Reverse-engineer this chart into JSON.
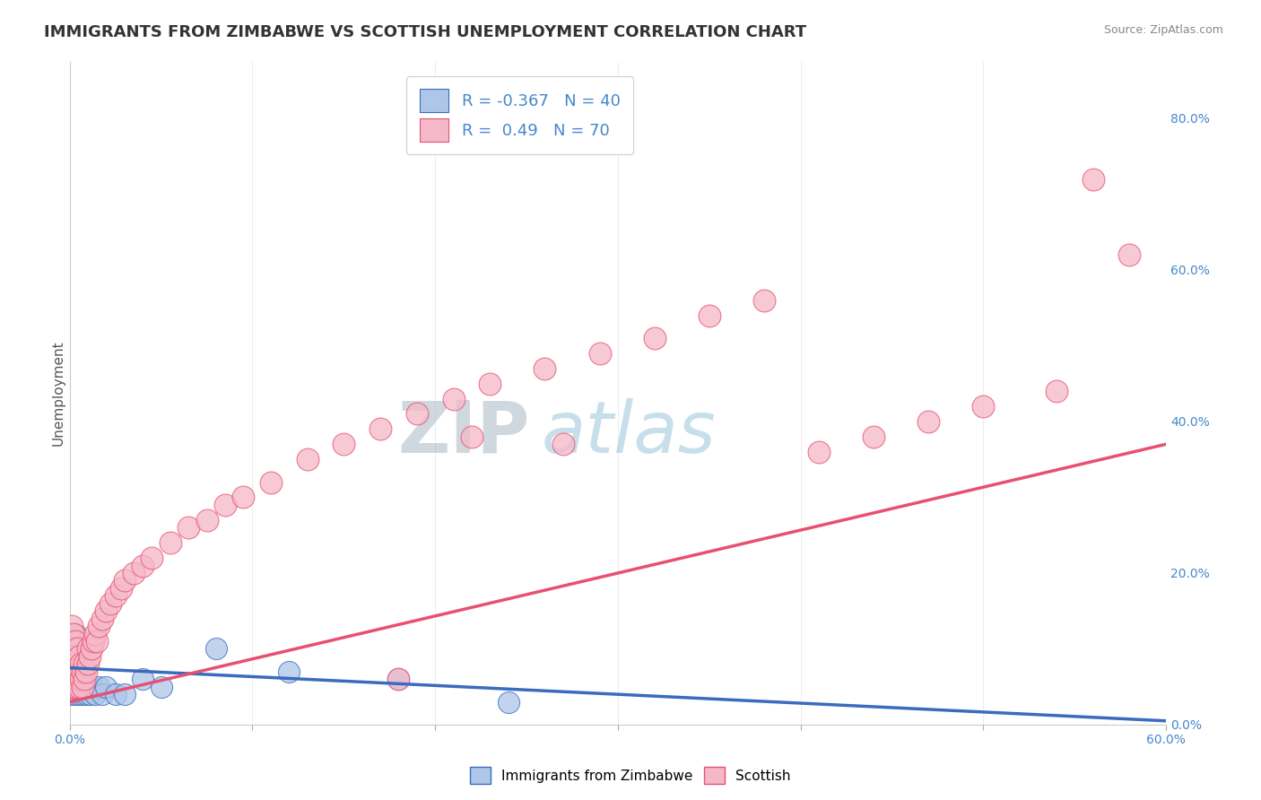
{
  "title": "IMMIGRANTS FROM ZIMBABWE VS SCOTTISH UNEMPLOYMENT CORRELATION CHART",
  "source": "Source: ZipAtlas.com",
  "ylabel": "Unemployment",
  "xlim": [
    0.0,
    0.6
  ],
  "ylim": [
    0.0,
    0.875
  ],
  "xticks": [
    0.0,
    0.1,
    0.2,
    0.3,
    0.4,
    0.5,
    0.6
  ],
  "xtick_labels_show": [
    "0.0%",
    "",
    "",
    "",
    "",
    "",
    "60.0%"
  ],
  "yticks_right": [
    0.0,
    0.2,
    0.4,
    0.6,
    0.8
  ],
  "ytick_labels_right": [
    "0.0%",
    "20.0%",
    "40.0%",
    "60.0%",
    "80.0%"
  ],
  "blue_scatter_x": [
    0.001,
    0.001,
    0.001,
    0.001,
    0.002,
    0.002,
    0.002,
    0.002,
    0.003,
    0.003,
    0.003,
    0.003,
    0.003,
    0.004,
    0.004,
    0.004,
    0.005,
    0.005,
    0.005,
    0.006,
    0.006,
    0.007,
    0.007,
    0.008,
    0.009,
    0.01,
    0.011,
    0.012,
    0.014,
    0.016,
    0.018,
    0.02,
    0.025,
    0.03,
    0.04,
    0.05,
    0.08,
    0.12,
    0.18,
    0.24
  ],
  "blue_scatter_y": [
    0.04,
    0.06,
    0.08,
    0.1,
    0.05,
    0.07,
    0.09,
    0.11,
    0.04,
    0.06,
    0.08,
    0.1,
    0.12,
    0.05,
    0.07,
    0.09,
    0.04,
    0.06,
    0.08,
    0.05,
    0.07,
    0.04,
    0.06,
    0.05,
    0.04,
    0.05,
    0.04,
    0.05,
    0.04,
    0.05,
    0.04,
    0.05,
    0.04,
    0.04,
    0.06,
    0.05,
    0.1,
    0.07,
    0.06,
    0.03
  ],
  "pink_scatter_x": [
    0.001,
    0.001,
    0.001,
    0.001,
    0.001,
    0.002,
    0.002,
    0.002,
    0.002,
    0.003,
    0.003,
    0.003,
    0.003,
    0.004,
    0.004,
    0.004,
    0.005,
    0.005,
    0.005,
    0.006,
    0.006,
    0.007,
    0.007,
    0.008,
    0.008,
    0.009,
    0.01,
    0.01,
    0.011,
    0.012,
    0.013,
    0.014,
    0.015,
    0.016,
    0.018,
    0.02,
    0.022,
    0.025,
    0.028,
    0.03,
    0.035,
    0.04,
    0.045,
    0.055,
    0.065,
    0.075,
    0.085,
    0.095,
    0.11,
    0.13,
    0.15,
    0.17,
    0.19,
    0.21,
    0.23,
    0.26,
    0.29,
    0.32,
    0.35,
    0.38,
    0.41,
    0.44,
    0.47,
    0.5,
    0.54,
    0.56,
    0.58,
    0.22,
    0.27,
    0.18
  ],
  "pink_scatter_y": [
    0.05,
    0.07,
    0.09,
    0.11,
    0.13,
    0.06,
    0.08,
    0.1,
    0.12,
    0.05,
    0.07,
    0.09,
    0.11,
    0.06,
    0.08,
    0.1,
    0.05,
    0.07,
    0.09,
    0.06,
    0.08,
    0.05,
    0.07,
    0.06,
    0.08,
    0.07,
    0.08,
    0.1,
    0.09,
    0.1,
    0.11,
    0.12,
    0.11,
    0.13,
    0.14,
    0.15,
    0.16,
    0.17,
    0.18,
    0.19,
    0.2,
    0.21,
    0.22,
    0.24,
    0.26,
    0.27,
    0.29,
    0.3,
    0.32,
    0.35,
    0.37,
    0.39,
    0.41,
    0.43,
    0.45,
    0.47,
    0.49,
    0.51,
    0.54,
    0.56,
    0.36,
    0.38,
    0.4,
    0.42,
    0.44,
    0.72,
    0.62,
    0.38,
    0.37,
    0.06
  ],
  "blue_color": "#aec6e8",
  "pink_color": "#f5b8c8",
  "blue_line_color": "#3a6bbf",
  "pink_line_color": "#e85070",
  "blue_trend_x": [
    0.0,
    0.6
  ],
  "blue_trend_y": [
    0.075,
    0.005
  ],
  "pink_trend_x": [
    0.0,
    0.6
  ],
  "pink_trend_y": [
    0.03,
    0.37
  ],
  "blue_R": -0.367,
  "blue_N": 40,
  "pink_R": 0.49,
  "pink_N": 70,
  "watermark_zip": "ZIP",
  "watermark_atlas": "atlas",
  "title_fontsize": 13,
  "label_fontsize": 11,
  "tick_fontsize": 10,
  "background_color": "#ffffff",
  "grid_color": "#c8d8e8",
  "legend_label_blue": "Immigrants from Zimbabwe",
  "legend_label_pink": "Scottish"
}
